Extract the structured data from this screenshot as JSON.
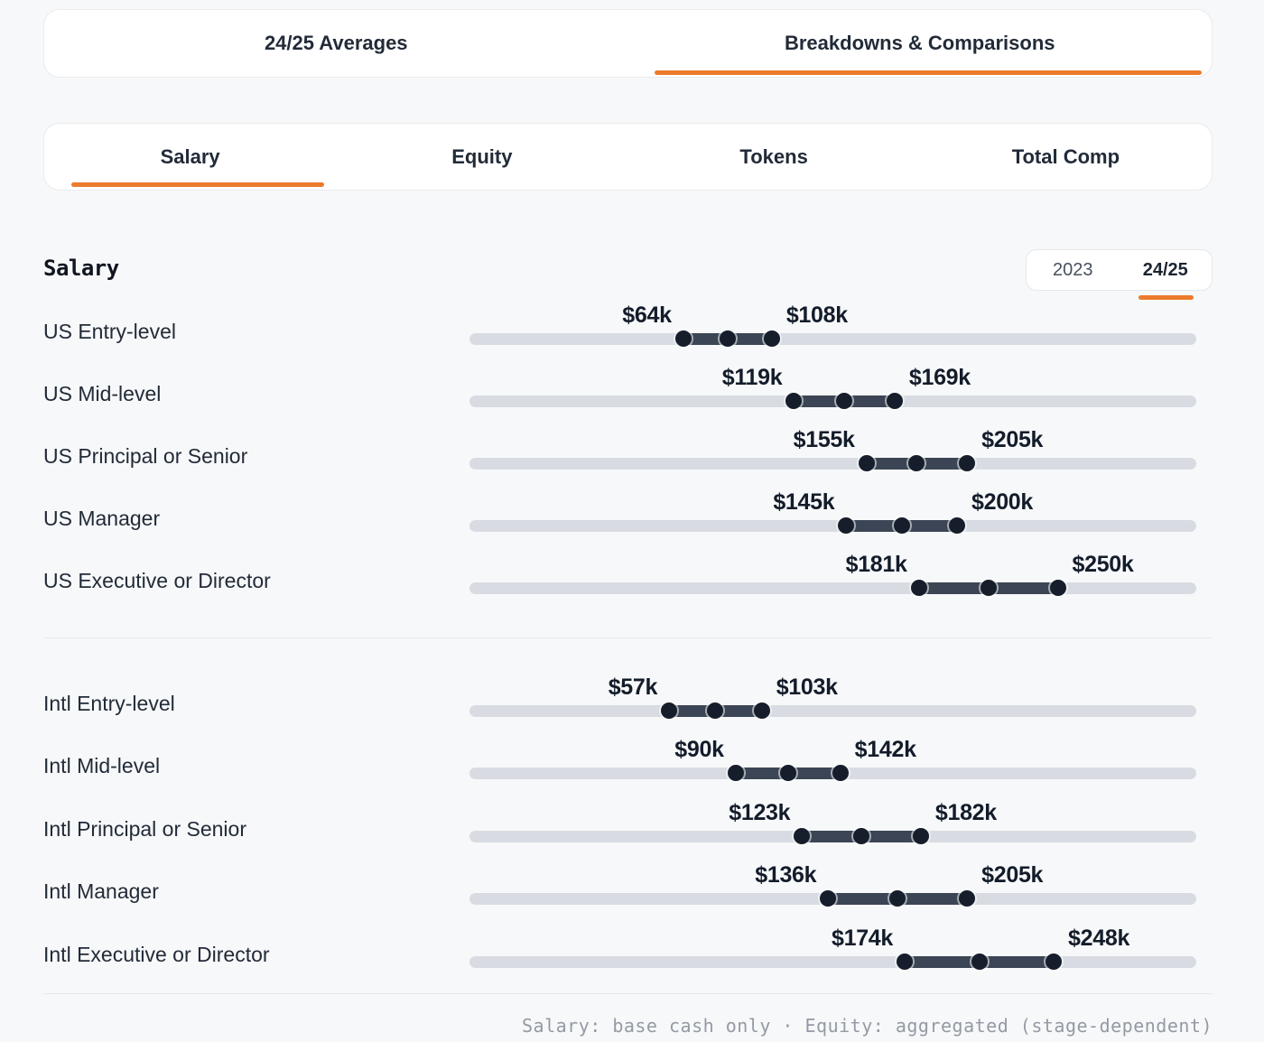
{
  "colors": {
    "accent": "#ec7b2d",
    "track": "#d8dce2",
    "range_fill": "#3b4555",
    "marker": "#161e2c",
    "background": "#f7f8f9"
  },
  "main_tabs": [
    {
      "label": "24/25 Averages",
      "active": false
    },
    {
      "label": "Breakdowns & Comparisons",
      "active": true
    }
  ],
  "metric_tabs": [
    {
      "label": "Salary",
      "active": true
    },
    {
      "label": "Equity",
      "active": false
    },
    {
      "label": "Tokens",
      "active": false
    },
    {
      "label": "Total Comp",
      "active": false
    }
  ],
  "section": {
    "title": "Salary"
  },
  "year_toggle": {
    "options": [
      {
        "label": "2023",
        "active": false
      },
      {
        "label": "24/25",
        "active": true
      }
    ]
  },
  "chart_data": {
    "type": "dumbbell",
    "title": "Salary",
    "unit": "USD thousands",
    "value_prefix": "$",
    "marker_style": "min, midpoint and max dots on a range bar",
    "groups": [
      {
        "name": "US",
        "rows": [
          {
            "label": "US Entry-level",
            "min": 64,
            "max": 108,
            "min_label": "$64k",
            "max_label": "$108k"
          },
          {
            "label": "US Mid-level",
            "min": 119,
            "max": 169,
            "min_label": "$119k",
            "max_label": "$169k"
          },
          {
            "label": "US Principal or Senior",
            "min": 155,
            "max": 205,
            "min_label": "$155k",
            "max_label": "$205k"
          },
          {
            "label": "US Manager",
            "min": 145,
            "max": 200,
            "min_label": "$145k",
            "max_label": "$200k"
          },
          {
            "label": "US Executive or Director",
            "min": 181,
            "max": 250,
            "min_label": "$181k",
            "max_label": "$250k"
          }
        ]
      },
      {
        "name": "Intl",
        "rows": [
          {
            "label": "Intl Entry-level",
            "min": 57,
            "max": 103,
            "min_label": "$57k",
            "max_label": "$103k"
          },
          {
            "label": "Intl Mid-level",
            "min": 90,
            "max": 142,
            "min_label": "$90k",
            "max_label": "$142k"
          },
          {
            "label": "Intl Principal or Senior",
            "min": 123,
            "max": 182,
            "min_label": "$123k",
            "max_label": "$182k"
          },
          {
            "label": "Intl Manager",
            "min": 136,
            "max": 205,
            "min_label": "$136k",
            "max_label": "$205k"
          },
          {
            "label": "Intl Executive or Director",
            "min": 174,
            "max": 248,
            "min_label": "$174k",
            "max_label": "$248k"
          }
        ]
      }
    ]
  },
  "footer": {
    "note": "Salary: base cash only · Equity: aggregated (stage-dependent)"
  }
}
